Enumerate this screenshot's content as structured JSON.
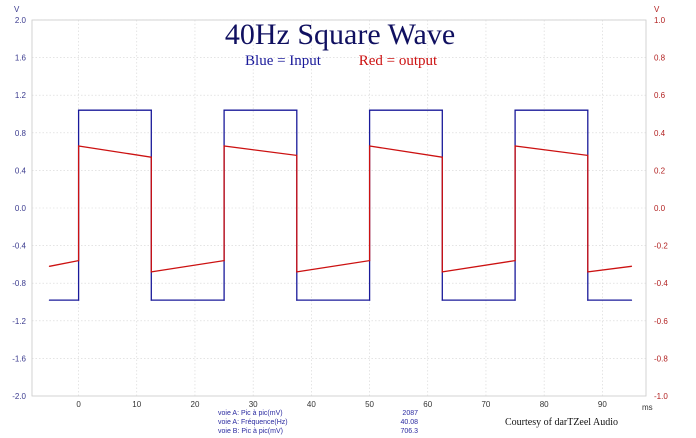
{
  "chart_data": {
    "type": "line",
    "title": "40Hz Square Wave",
    "legend": [
      {
        "text": "Blue = Input",
        "color": "#1a1a9a"
      },
      {
        "text": "Red = output",
        "color": "#cc1111"
      }
    ],
    "xlabel": "ms",
    "ylabel_left": "V",
    "ylabel_right": "V",
    "xlim": [
      -8,
      97.5
    ],
    "ylim_left": [
      -2.0,
      2.0
    ],
    "ylim_right": [
      -1.0,
      1.0
    ],
    "xticks": [
      "0",
      "10",
      "20",
      "30",
      "40",
      "50",
      "60",
      "70",
      "80",
      "90"
    ],
    "yticks_left": [
      "2.0",
      "1.6",
      "1.2",
      "0.8",
      "0.4",
      "0.0",
      "-0.4",
      "-0.8",
      "-1.2",
      "-1.6",
      "-2.0"
    ],
    "yticks_right": [
      "1.0",
      "0.8",
      "0.6",
      "0.4",
      "0.2",
      "0.0",
      "-0.2",
      "-0.4",
      "-0.6",
      "-0.8",
      "-1.0"
    ],
    "grid": true,
    "series": [
      {
        "name": "Blue = Input",
        "color": "#1a1a9a",
        "axis": "left",
        "x": [
          -5,
          0,
          0,
          12.5,
          12.5,
          25,
          25,
          37.5,
          37.5,
          50,
          50,
          62.5,
          62.5,
          75,
          75,
          87.5,
          87.5,
          95
        ],
        "y": [
          -0.98,
          -0.98,
          1.04,
          1.04,
          -0.98,
          -0.98,
          1.04,
          1.04,
          -0.98,
          -0.98,
          1.04,
          1.04,
          -0.98,
          -0.98,
          1.04,
          1.04,
          -0.98,
          -0.98
        ]
      },
      {
        "name": "Red = output",
        "color": "#cc1111",
        "axis": "right",
        "x": [
          -5,
          0,
          0,
          12.5,
          12.5,
          25,
          25,
          37.5,
          37.5,
          50,
          50,
          62.5,
          62.5,
          75,
          75,
          87.5,
          87.5,
          95
        ],
        "y": [
          -0.31,
          -0.28,
          0.33,
          0.27,
          -0.34,
          -0.28,
          0.33,
          0.28,
          -0.34,
          -0.28,
          0.33,
          0.27,
          -0.34,
          -0.28,
          0.33,
          0.28,
          -0.34,
          -0.31
        ]
      }
    ],
    "readouts": [
      {
        "label": "voie A: Pic à pic(mV)",
        "value": "2087"
      },
      {
        "label": "voie A: Fréquence(Hz)",
        "value": "40.08"
      },
      {
        "label": "voie B: Pic à pic(mV)",
        "value": "706.3"
      }
    ],
    "credit": "Courtesy of darTZeel Audio"
  }
}
